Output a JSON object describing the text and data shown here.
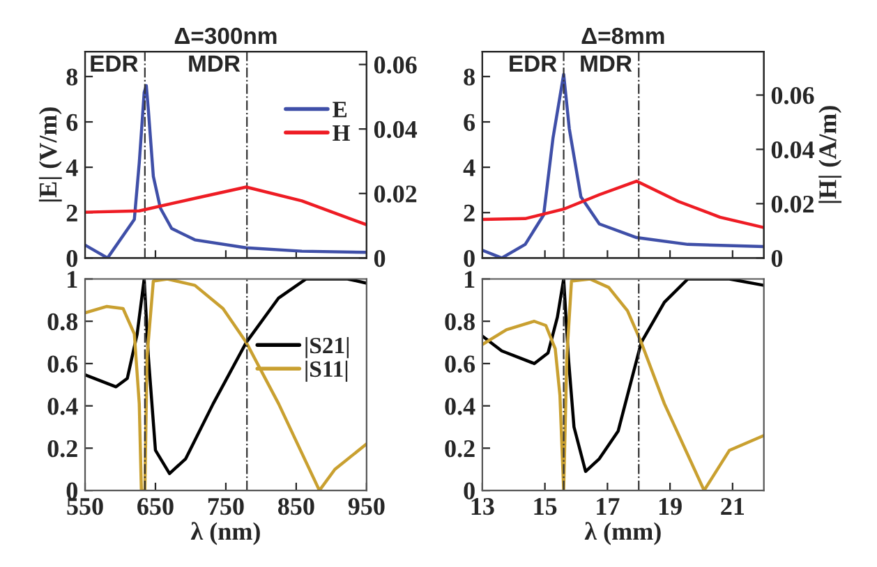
{
  "chart_data": [
    {
      "type": "line",
      "title": "Δ=300nm",
      "ylabel": "|E| (V/m)",
      "xlim": [
        550,
        950
      ],
      "xticks": [
        {
          "value": 650,
          "label": null
        },
        {
          "value": 750,
          "label": null
        },
        {
          "value": 850,
          "label": null
        }
      ],
      "ylim": [
        0,
        9.1
      ],
      "yticks": [
        0,
        2,
        4,
        6,
        8
      ],
      "y2lim": [
        0,
        0.064
      ],
      "y2ticks": [
        0,
        0.02,
        0.04,
        0.06
      ],
      "tick_labels": "y",
      "legend": "top right",
      "ref_lines": [
        {
          "axis": "x",
          "value": 635,
          "label": "EDR"
        },
        {
          "axis": "x",
          "value": 780,
          "label": "MDR"
        }
      ],
      "series": [
        {
          "name": "E",
          "color": "#3f4fa8",
          "x": [
            550,
            582,
            620,
            627,
            634,
            637,
            640,
            647,
            657,
            673,
            706,
            779,
            858,
            950
          ],
          "values": [
            0.57,
            0,
            1.7,
            4.2,
            7.3,
            7.6,
            6.5,
            3.6,
            2.2,
            1.3,
            0.8,
            0.45,
            0.3,
            0.25
          ]
        },
        {
          "name": "H",
          "color": "#ee1c24",
          "axis": "y2",
          "x": [
            550,
            627,
            706,
            779,
            858,
            950
          ],
          "values": [
            0.0142,
            0.0146,
            0.0185,
            0.022,
            0.0177,
            0.0103
          ]
        }
      ]
    },
    {
      "type": "line",
      "title": "Δ=8mm",
      "y2label": "|H| (A/m)",
      "xlim": [
        13,
        22
      ],
      "xticks": [
        {
          "value": 15,
          "label": null
        },
        {
          "value": 17,
          "label": null
        },
        {
          "value": 19,
          "label": null
        },
        {
          "value": 21,
          "label": null
        }
      ],
      "ylim": [
        0,
        9.1
      ],
      "yticks": [
        0,
        2,
        4,
        6,
        8
      ],
      "y2lim": [
        0,
        0.076
      ],
      "y2ticks": [
        0,
        0.02,
        0.04,
        0.06
      ],
      "tick_labels": "y",
      "ref_lines": [
        {
          "axis": "x",
          "value": 15.6,
          "label": "EDR"
        },
        {
          "axis": "x",
          "value": 18,
          "label": "MDR"
        }
      ],
      "series": [
        {
          "color": "#3f4fa8",
          "x": [
            13,
            13.62,
            14.37,
            14.96,
            15.26,
            15.6,
            15.78,
            16.15,
            16.74,
            17.93,
            19.57,
            22
          ],
          "values": [
            0.34,
            0,
            0.6,
            1.9,
            5.3,
            8.1,
            5.7,
            2.7,
            1.5,
            0.9,
            0.6,
            0.5
          ]
        },
        {
          "color": "#ee1c24",
          "axis": "y2",
          "x": [
            13,
            14.37,
            15.6,
            16.74,
            17.93,
            19.27,
            20.6,
            22
          ],
          "values": [
            0.0142,
            0.0145,
            0.018,
            0.0233,
            0.0283,
            0.0208,
            0.015,
            0.0112
          ]
        }
      ]
    },
    {
      "type": "line",
      "xlabel": "λ (nm)",
      "xlim": [
        550,
        950
      ],
      "xticks": [
        550,
        650,
        750,
        850,
        950
      ],
      "ylim": [
        0,
        1
      ],
      "yticks": [
        0,
        0.2,
        0.4,
        0.6,
        0.8,
        1
      ],
      "legend": "right",
      "ref_lines": [
        {
          "axis": "x",
          "value": 635
        },
        {
          "axis": "x",
          "value": 780
        }
      ],
      "series": [
        {
          "name": "|S21|",
          "color": "#000000",
          "x": [
            550,
            594,
            610,
            624,
            634,
            640,
            650,
            670,
            693,
            732,
            779,
            825,
            864,
            923,
            950
          ],
          "values": [
            0.547,
            0.49,
            0.53,
            0.74,
            1.0,
            0.63,
            0.19,
            0.08,
            0.15,
            0.41,
            0.7,
            0.91,
            1.0,
            1.0,
            0.98
          ]
        },
        {
          "name": "|S11|",
          "color": "#c9a030",
          "x": [
            550,
            581,
            604,
            620,
            627,
            630,
            635,
            638,
            647,
            667,
            706,
            746,
            779,
            825,
            883,
            905,
            950
          ],
          "values": [
            0.84,
            0.87,
            0.86,
            0.74,
            0.41,
            0,
            0,
            0.63,
            0.99,
            1.0,
            0.97,
            0.86,
            0.7,
            0.41,
            0,
            0.1,
            0.22
          ]
        }
      ]
    },
    {
      "type": "line",
      "xlabel": "λ (mm)",
      "xlim": [
        13,
        22
      ],
      "xticks": [
        13,
        15,
        17,
        19,
        21
      ],
      "ylim": [
        0,
        1
      ],
      "yticks": [
        0,
        0.2,
        0.4,
        0.6,
        0.8,
        1
      ],
      "ref_lines": [
        {
          "axis": "x",
          "value": 15.6
        },
        {
          "axis": "x",
          "value": 18
        }
      ],
      "series": [
        {
          "color": "#000000",
          "x": [
            13,
            13.62,
            14.66,
            15.1,
            15.4,
            15.6,
            15.75,
            15.93,
            16.3,
            16.74,
            17.34,
            18.08,
            18.82,
            19.57,
            20.9,
            22
          ],
          "values": [
            0.73,
            0.66,
            0.6,
            0.65,
            0.82,
            1.0,
            0.63,
            0.3,
            0.09,
            0.15,
            0.28,
            0.7,
            0.89,
            1.0,
            1.0,
            0.97
          ]
        },
        {
          "color": "#c9a030",
          "x": [
            13,
            13.77,
            14.66,
            15.03,
            15.33,
            15.48,
            15.6,
            15.7,
            15.85,
            16.44,
            17.04,
            17.64,
            18.08,
            18.82,
            20.09,
            20.9,
            22
          ],
          "values": [
            0.69,
            0.76,
            0.8,
            0.78,
            0.67,
            0.45,
            0,
            0.63,
            0.99,
            1.0,
            0.96,
            0.85,
            0.7,
            0.41,
            0,
            0.19,
            0.26
          ]
        }
      ]
    }
  ]
}
